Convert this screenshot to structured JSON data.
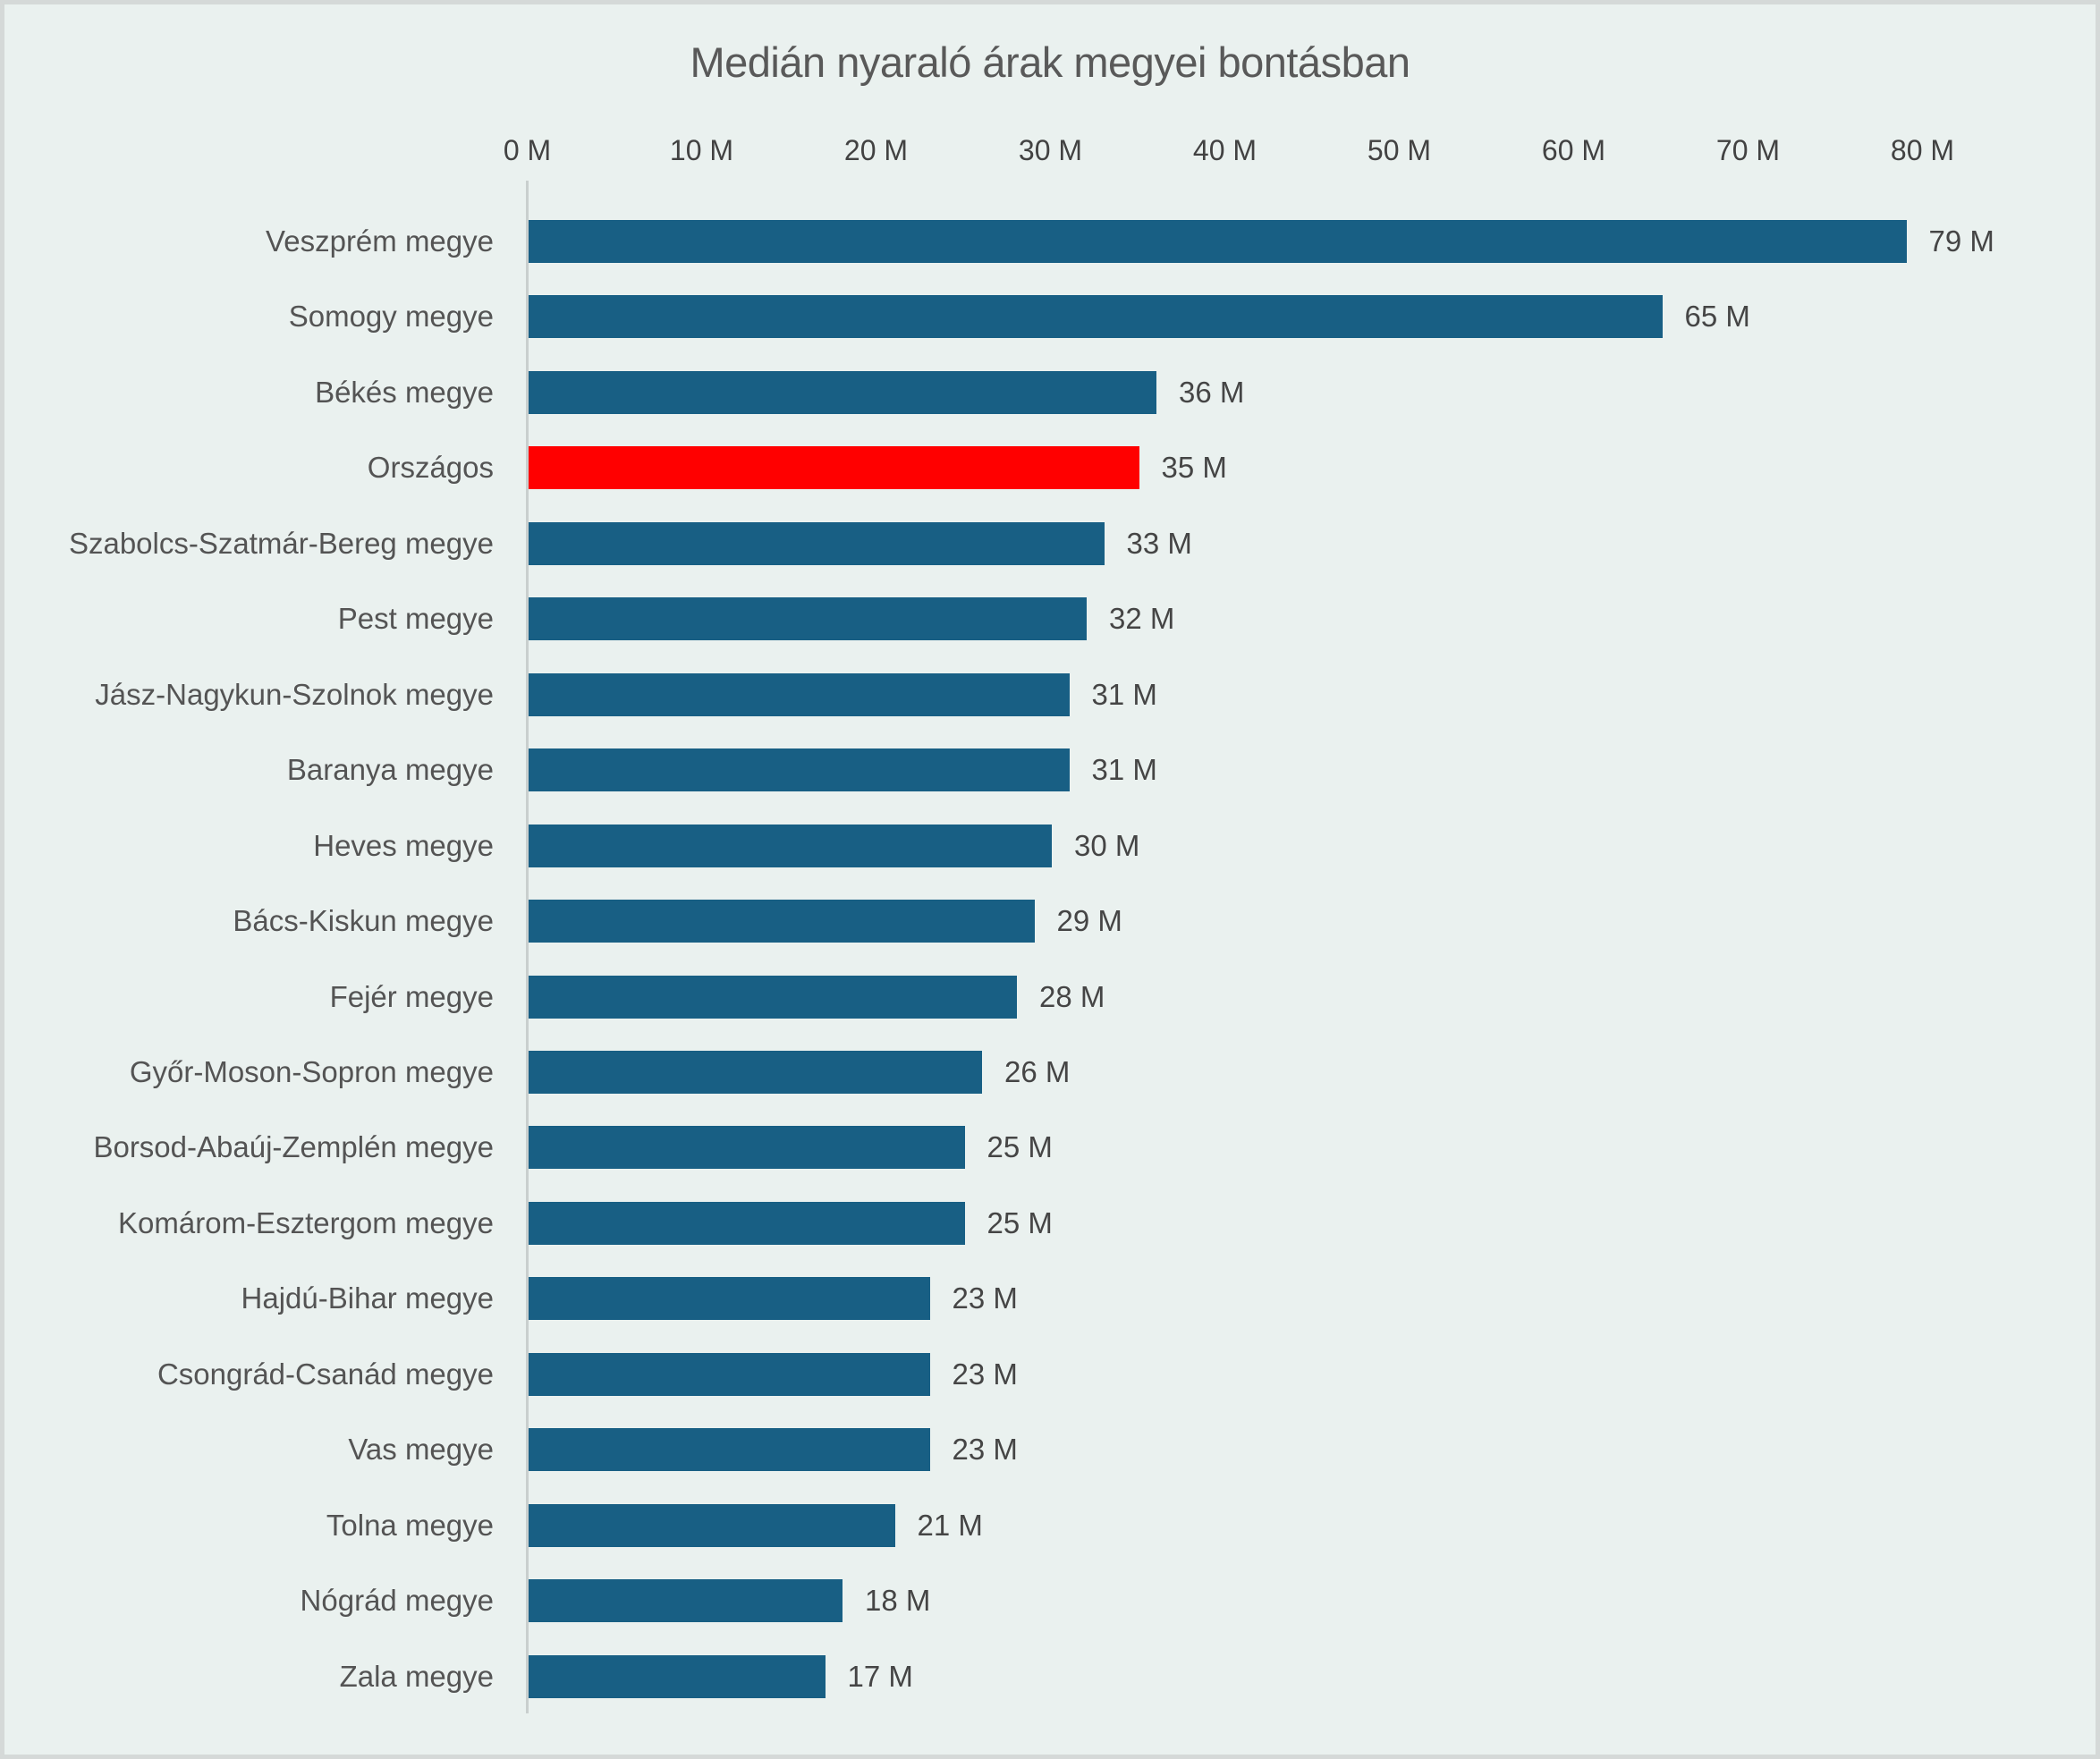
{
  "chart_data": {
    "type": "bar",
    "orientation": "horizontal",
    "title": "Medián nyaraló árak megyei bontásban",
    "x_ticks": [
      "0 M",
      "10 M",
      "20 M",
      "30 M",
      "40 M",
      "50 M",
      "60 M",
      "70 M",
      "80 M"
    ],
    "xlim": [
      0,
      80
    ],
    "grid": false,
    "legend": false,
    "categories": [
      "Veszprém megye",
      "Somogy megye",
      "Békés megye",
      "Országos",
      "Szabolcs-Szatmár-Bereg megye",
      "Pest megye",
      "Jász-Nagykun-Szolnok megye",
      "Baranya megye",
      "Heves megye",
      "Bács-Kiskun megye",
      "Fejér megye",
      "Győr-Moson-Sopron megye",
      "Borsod-Abaúj-Zemplén megye",
      "Komárom-Esztergom megye",
      "Hajdú-Bihar megye",
      "Csongrád-Csanád megye",
      "Vas megye",
      "Tolna megye",
      "Nógrád megye",
      "Zala megye"
    ],
    "values": [
      79,
      65,
      36,
      35,
      33,
      32,
      31,
      31,
      30,
      29,
      28,
      26,
      25,
      25,
      23,
      23,
      23,
      21,
      18,
      17
    ],
    "value_labels": [
      "79 M",
      "65 M",
      "36 M",
      "35 M",
      "33 M",
      "32 M",
      "31 M",
      "31 M",
      "30 M",
      "29 M",
      "28 M",
      "26 M",
      "25 M",
      "25 M",
      "23 M",
      "23 M",
      "23 M",
      "21 M",
      "18 M",
      "17 M"
    ],
    "highlight_index": 3,
    "highlight_category": "Országos",
    "bar_color": "#185F84",
    "highlight_color": "#FF0000",
    "background_color": "#EAF1EF",
    "axis_line_color": "#C9CFCE"
  }
}
